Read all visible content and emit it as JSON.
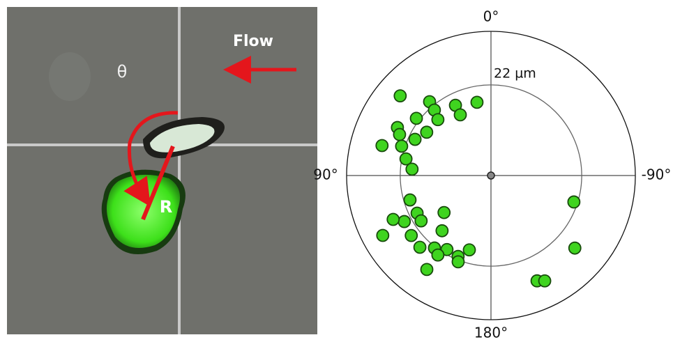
{
  "image_panel": {
    "flow_label": "Flow",
    "angle_label": "θ",
    "radius_label": "R"
  },
  "chart_data": {
    "type": "polar-scatter",
    "theta": [
      48.7,
      39.7,
      40.8,
      26.8,
      10.8,
      26.8,
      43.5,
      52.5,
      62.8,
      65.8,
      56.0,
      64.5,
      74.6,
      71.8,
      78.9,
      85.4,
      106.8,
      117.0,
      123.0,
      118.0,
      114.2,
      128.3,
      138.5,
      119.0,
      127.0,
      135.3,
      142.1,
      149.3,
      157.9,
      163.8,
      159.2,
      146.3,
      145.7,
      -107.7,
      -130.9,
      -156.4,
      -153.0
    ],
    "r": [
      29.3,
      23.3,
      21.0,
      19.1,
      18.1,
      16.5,
      18.7,
      22.8,
      25.5,
      24.3,
      18.8,
      20.4,
      27.4,
      22.8,
      21.0,
      19.2,
      20.5,
      20.1,
      20.2,
      23.8,
      26.0,
      14.5,
      17.9,
      30.0,
      24.2,
      24.5,
      22.3,
      20.9,
      21.2,
      18.8,
      22.4,
      23.2,
      27.6,
      21.1,
      26.9,
      27.9,
      28.7
    ],
    "color": "#3fd41f",
    "rlim": [
      0,
      35
    ],
    "rticks": [
      {
        "value": 22,
        "label": "22 µm"
      }
    ],
    "thetaticks": [
      {
        "value": 0,
        "label": "0°"
      },
      {
        "value": 90,
        "label": "90°"
      },
      {
        "value": 180,
        "label": "180°"
      },
      {
        "value": -90,
        "label": "-90°"
      }
    ]
  }
}
